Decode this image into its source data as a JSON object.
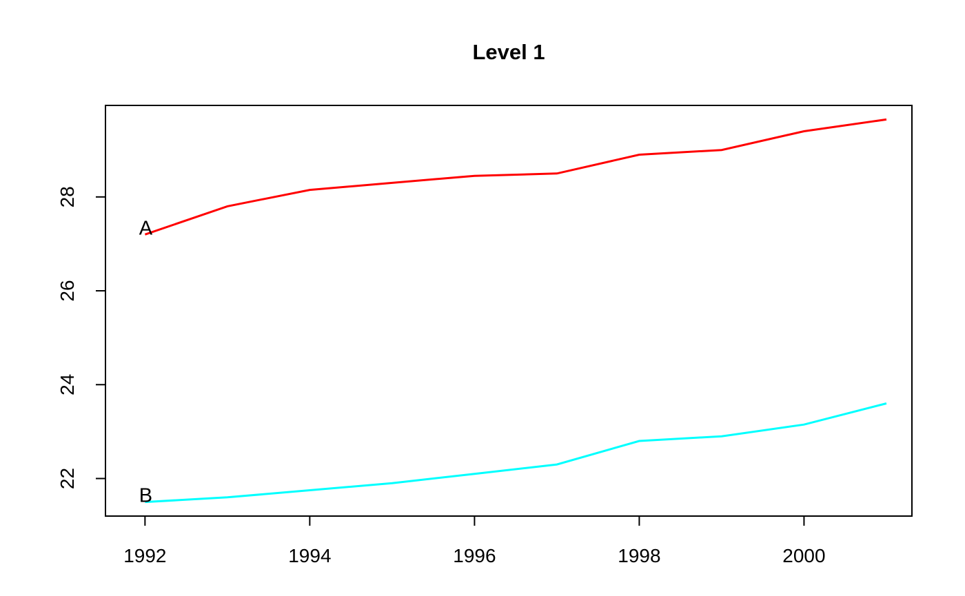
{
  "chart_data": {
    "type": "line",
    "title": "Level 1",
    "xlabel": "",
    "ylabel": "",
    "x": [
      1992,
      1993,
      1994,
      1995,
      1996,
      1997,
      1998,
      1999,
      2000,
      2001
    ],
    "series": [
      {
        "name": "A",
        "color": "#ff0000",
        "values": [
          27.2,
          27.8,
          28.15,
          28.3,
          28.45,
          28.5,
          28.9,
          29.0,
          29.4,
          29.65
        ]
      },
      {
        "name": "B",
        "color": "#00ffff",
        "values": [
          21.5,
          21.6,
          21.75,
          21.9,
          22.1,
          22.3,
          22.8,
          22.9,
          23.15,
          23.6
        ]
      }
    ],
    "x_ticks": [
      1992,
      1994,
      1996,
      1998,
      2000
    ],
    "y_ticks": [
      22,
      24,
      26,
      28
    ],
    "xlim": [
      1991.52,
      2001.31
    ],
    "ylim": [
      21.2,
      29.95
    ],
    "grid": false,
    "legend": "inline-series-labels",
    "background_color": "#ffffff",
    "axis_color": "#000000",
    "text_color": "#000000"
  }
}
